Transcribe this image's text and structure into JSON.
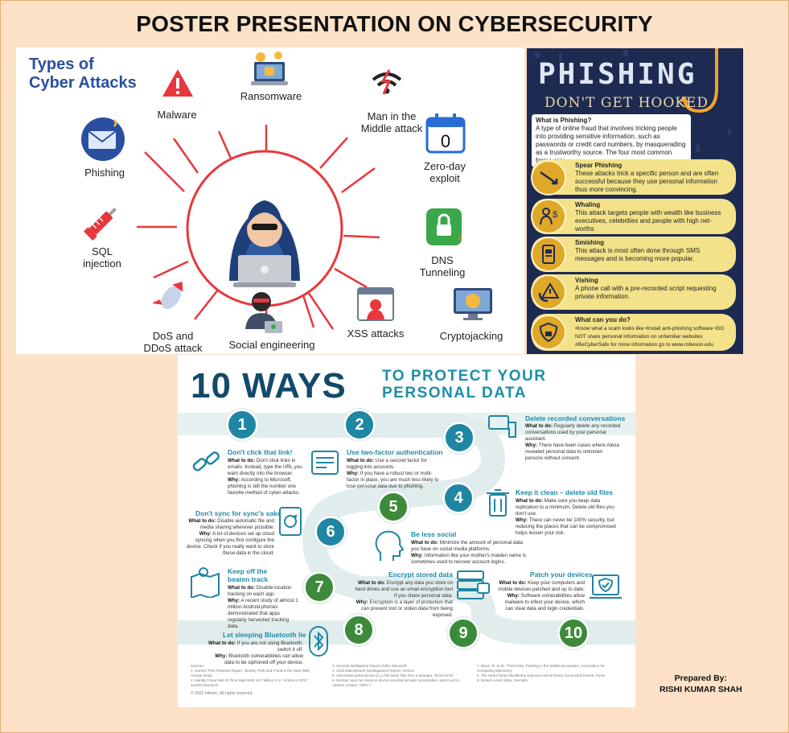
{
  "title": "POSTER PRESENTATION ON CYBERSECURITY",
  "attacks": {
    "title_line1": "Types of",
    "title_line2": "Cyber Attacks",
    "items": [
      {
        "line1": "Malware",
        "line2": ""
      },
      {
        "line1": "Ransomware",
        "line2": ""
      },
      {
        "line1": "Man in the",
        "line2": "Middle attack"
      },
      {
        "line1": "Zero-day",
        "line2": "exploit"
      },
      {
        "line1": "Phishing",
        "line2": ""
      },
      {
        "line1": "SQL",
        "line2": "injection"
      },
      {
        "line1": "DNS",
        "line2": "Tunneling"
      },
      {
        "line1": "DoS and",
        "line2": "DDoS attack"
      },
      {
        "line1": "Social engineering",
        "line2": ""
      },
      {
        "line1": "XSS attacks",
        "line2": ""
      },
      {
        "line1": "Cryptojacking",
        "line2": ""
      }
    ],
    "zero_day_digit": "0"
  },
  "phishing": {
    "title": "PHISHING",
    "subtitle": "DON'T GET HOOKED",
    "what_heading": "What is Phishing?",
    "what_text": "A type of online fraud that involves tricking people into providing sensitive information, such as passwords or credit card numbers, by masquerading as a trustworthy source. The four most common forms are:",
    "cards": [
      {
        "heading": "Spear Phishing",
        "text": "These attacks trick a specific person and are often successful because they use personal information thus more convincing."
      },
      {
        "heading": "Whaling",
        "text": "This attack targets people with wealth like business executives, celebrities and people with high net-worths"
      },
      {
        "heading": "Smishing",
        "text": "This attack is most often done through SMS messages and is becoming more popular."
      },
      {
        "heading": "Vishing",
        "text": "A phone call with a pre-recorded script requesting private information."
      },
      {
        "heading": "What can you do?",
        "text": "•Know what a scam looks like •Install anti-phishing software •DO NOT share personal information on unfamiliar websites #BeCyberSafe for more information go to www.robeson.edu"
      }
    ]
  },
  "ways": {
    "big": "10 WAYS",
    "small_line1": "TO PROTECT YOUR",
    "small_line2": "PERSONAL DATA",
    "numbers": [
      "1",
      "2",
      "3",
      "4",
      "5",
      "6",
      "7",
      "8",
      "9",
      "10"
    ],
    "tips": [
      {
        "heading": "Don't click that link!",
        "todo": "Don't click links in emails. Instead, type the URL you want directly into the browser.",
        "why": "According to Microsoft, phishing is still the number one favorite method of cyber-attacks."
      },
      {
        "heading": "Use two-factor authentication",
        "todo": "Use a second factor for logging into accounts.",
        "why": "If you have a robust two or multi-factor in place, you are much less likely to lose personal data due to phishing."
      },
      {
        "heading": "Delete recorded conversations",
        "todo": "Regularly delete any recorded conversations used by your personal assistant.",
        "why": "There have been cases where Alexa revealed personal data to unknown persons without consent."
      },
      {
        "heading": "Keep it clean – delete old files",
        "todo": "Make sure you keep data replication to a minimum. Delete old files you don't use.",
        "why": "There can never be 100% security, but reducing the places that can be compromised helps lessen your risk."
      },
      {
        "heading": "Be less social",
        "todo": "Minimize the amount of personal data you have on social media platforms.",
        "why": "Information like your mother's maiden name is sometimes used to recover account logins."
      },
      {
        "heading": "Don't sync for sync's sake",
        "todo": "Disable automatic file and media sharing wherever possible.",
        "why": "A lot of devices set up cloud syncing when you first configure the device. Check if you really want to store these data in the cloud."
      },
      {
        "heading": "Keep off the beaten track",
        "todo": "Disable location tracking on each app.",
        "why": "A recent study of almost 1 million Android phones demonstrated that apps regularly harvested tracking data."
      },
      {
        "heading": "Let sleeping Bluetooth lie",
        "todo": "If you are not using Bluetooth, switch it off.",
        "why": "Bluetooth vulnerabilities can allow data to be siphoned off your device."
      },
      {
        "heading": "Encrypt stored data",
        "todo": "Encrypt any data you store on hard drives and use an email encryption tool if you share personal data.",
        "why": "Encryption is a layer of protection that can prevent lost or stolen data from being exposed."
      },
      {
        "heading": "Patch your devices",
        "todo": "Keep your computers and mobile devices patched and up to date.",
        "why": "Software vulnerabilities allow malware to infect your device, which can steal data and login credentials."
      }
    ],
    "todo_label": "What to do:",
    "why_label": "Why:",
    "sources_label": "Sources",
    "sources": [
      "1. Gartner Peer Reviews Report, Identity Theft and Fraud in the Dark Web, Annual Study",
      "2. Identity Fraud Hits All Time High With 16.7 Million U.S. Victims in 2017, Javelin Research",
      "3. Security Intelligence Report (SIR), Microsoft",
      "4. 2018 Data Breach Investigations Report, Verizon",
      "5. Associated grant access to 1,700 audio files from a stranger, TechCrunch",
      "6. Woman says her Amazon device recorded private conversation, sent it out to random contact, KIRO 7",
      "7. Binns, R. et al., Third Party Tracking in the Mobile Ecosystem, Association for Computing Machinery",
      "8. The Heart Factor BlueBorne Exposes Almost Every Connected Device, Armis",
      "9. Breach Level Index, Gemalto"
    ],
    "copyright": "© 2022 Infosec. All rights reserved."
  },
  "prepared": {
    "label": "Prepared By:",
    "name": "RISHI KUMAR SHAH"
  }
}
